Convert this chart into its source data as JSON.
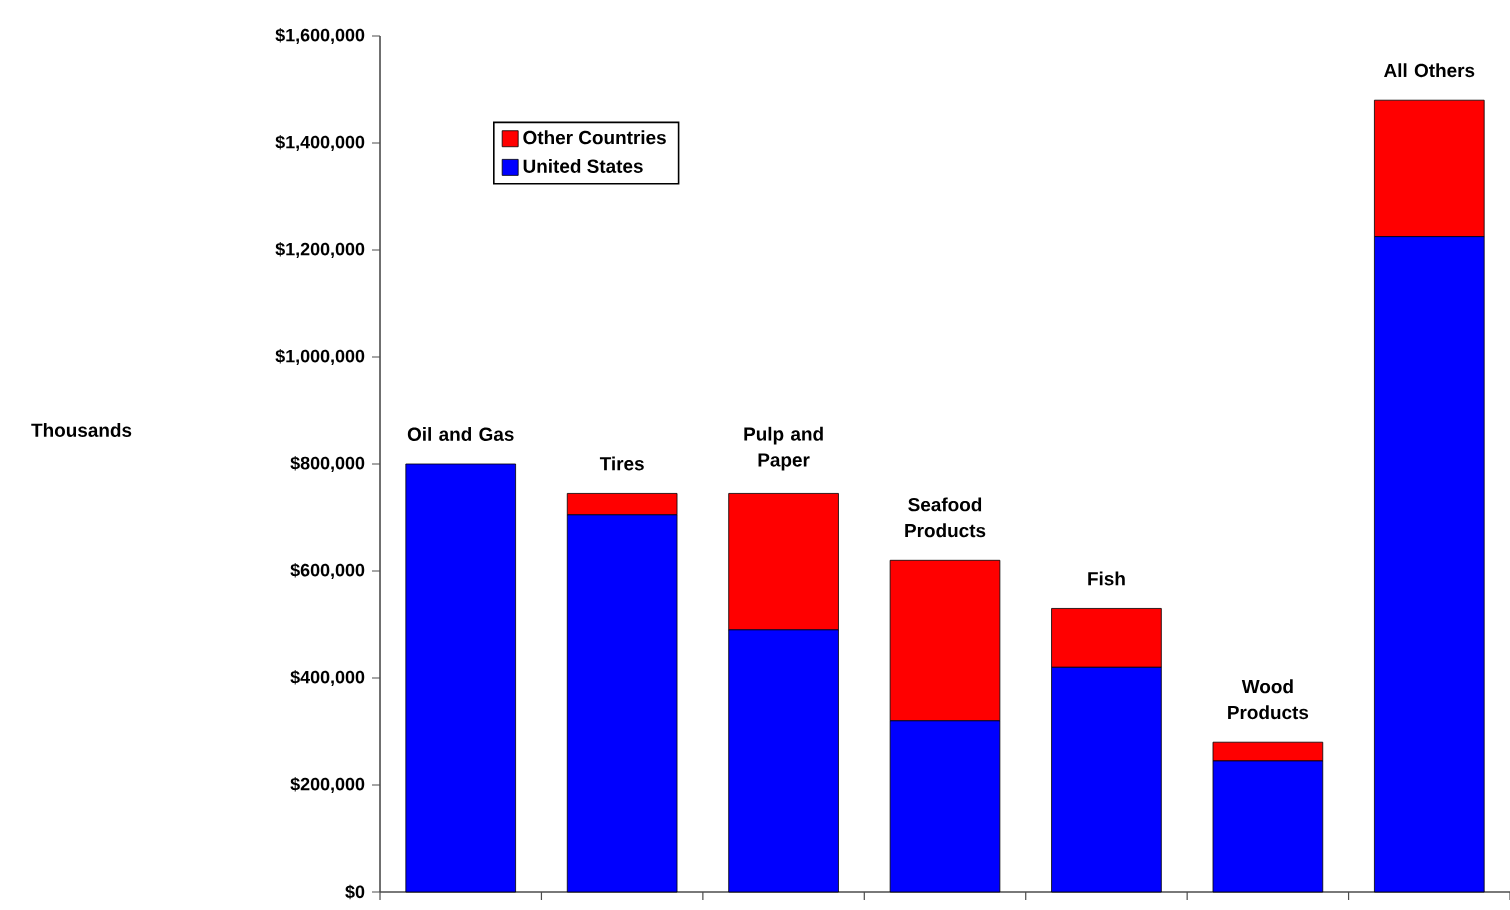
{
  "chart_data": {
    "type": "bar",
    "stacked": true,
    "annotations": [
      "Thousands"
    ],
    "categories": [
      "Oil and Gas",
      "Tires",
      "Pulp and Paper",
      "Seafood Products",
      "Fish",
      "Wood Products",
      "All Others"
    ],
    "series": [
      {
        "name": "United States",
        "color": "#0000ff",
        "values": [
          800000,
          705000,
          490000,
          320000,
          420000,
          245000,
          1225000
        ]
      },
      {
        "name": "Other Countries",
        "color": "#ff0000",
        "values": [
          0,
          40000,
          255000,
          300000,
          110000,
          35000,
          255000
        ]
      }
    ],
    "ylim": [
      0,
      1600000
    ],
    "yticks": [
      {
        "value": 0,
        "label": "$0"
      },
      {
        "value": 200000,
        "label": "$200,000"
      },
      {
        "value": 400000,
        "label": "$400,000"
      },
      {
        "value": 600000,
        "label": "$600,000"
      },
      {
        "value": 800000,
        "label": "$800,000"
      },
      {
        "value": 1000000,
        "label": "$1,000,000"
      },
      {
        "value": 1200000,
        "label": "$1,200,000"
      },
      {
        "value": 1400000,
        "label": "$1,400,000"
      },
      {
        "value": 1600000,
        "label": "$1,600,000"
      }
    ],
    "grid": false,
    "legend": "top left"
  }
}
